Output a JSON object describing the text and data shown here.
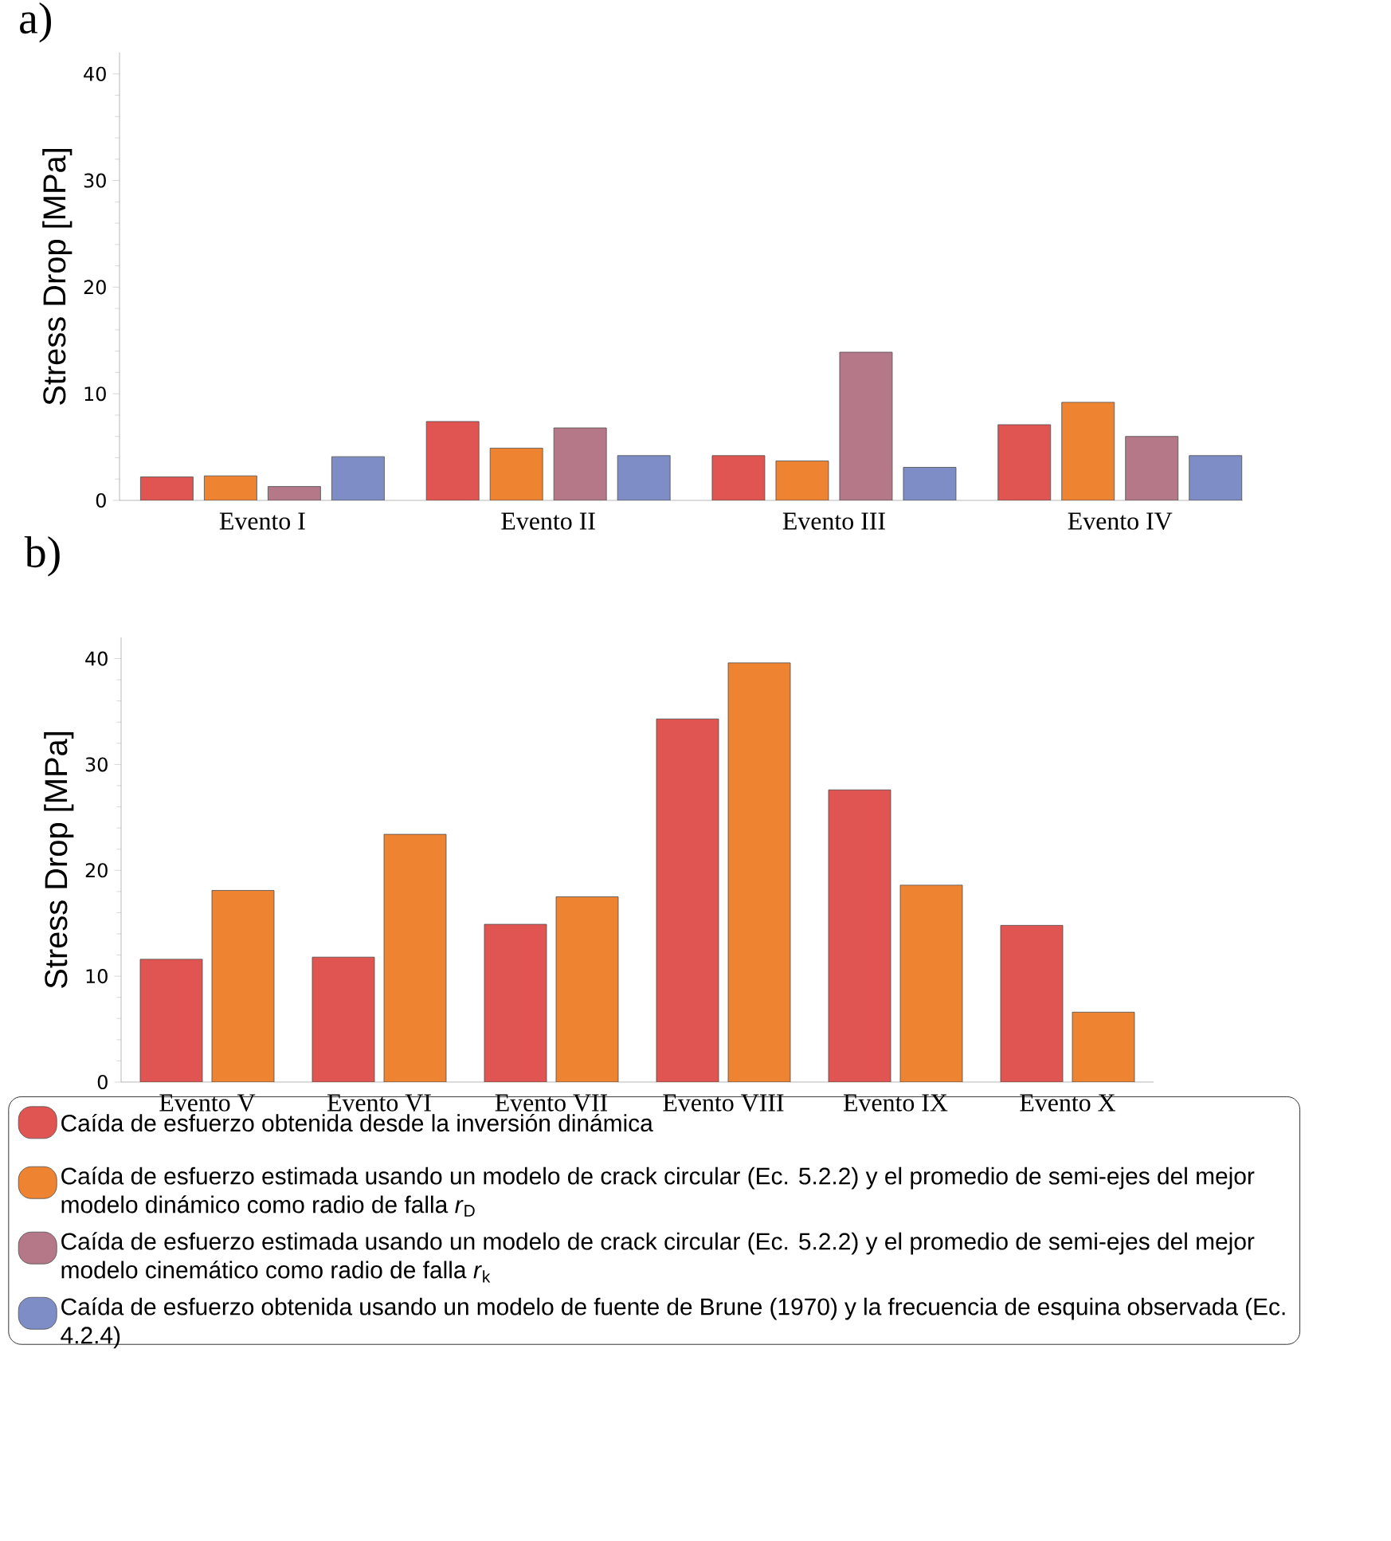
{
  "chart_data": [
    {
      "type": "bar",
      "title": "a)",
      "ylabel": "Stress Drop [MPa]",
      "categories": [
        "Evento I",
        "Evento II",
        "Evento III",
        "Evento IV"
      ],
      "series": [
        {
          "name": "Caída de esfuerzo obtenida desde la inversión dinámica",
          "color": "#e05552",
          "values": [
            2.2,
            7.4,
            4.2,
            7.1
          ]
        },
        {
          "name": "Caída de esfuerzo estimada usando un modelo de crack circular (Ec. 5.2.2) y el promedio de semi-ejes del mejor modelo dinámico como radio de falla *r*$_{D}$",
          "color": "#ee8432",
          "values": [
            2.3,
            4.9,
            3.7,
            9.2
          ]
        },
        {
          "name": "Caída de esfuerzo estimada usando un modelo de crack circular (Ec. 5.2.2) y el promedio de semi-ejes del mejor modelo cinemático como radio de falla *r*$_{k}$",
          "color": "#b57888",
          "values": [
            1.3,
            6.8,
            13.9,
            6.0
          ]
        },
        {
          "name": "Caída de esfuerzo obtenida usando un modelo de fuente de Brune (1970) y la frecuencia de esquina observada (Ec. 4.2.4)",
          "color": "#7e8dc6",
          "values": [
            4.1,
            4.2,
            3.1,
            4.2
          ]
        }
      ],
      "ylim": [
        0,
        42
      ],
      "yticks": [
        0,
        10,
        20,
        30,
        40
      ],
      "legend": "bottom"
    },
    {
      "type": "bar",
      "title": "b)",
      "ylabel": "Stress Drop [MPa]",
      "categories": [
        "Evento V",
        "Evento VI",
        "Evento VII",
        "Evento VIII",
        "Evento IX",
        "Evento X"
      ],
      "series": [
        {
          "color": "#e05552",
          "values": [
            11.6,
            11.8,
            14.9,
            34.3,
            27.6,
            14.8
          ]
        },
        {
          "color": "#ee8432",
          "values": [
            18.1,
            23.4,
            17.5,
            39.6,
            18.6,
            6.6
          ]
        }
      ],
      "ylim": [
        0,
        42
      ],
      "yticks": [
        0,
        10,
        20,
        30,
        40
      ]
    }
  ]
}
